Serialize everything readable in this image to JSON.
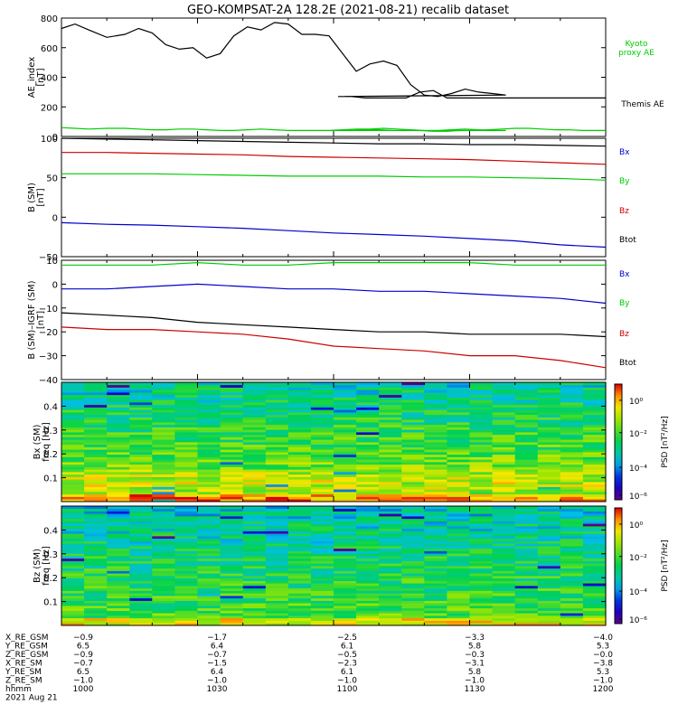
{
  "title": "GEO-KOMPSAT-2A 128.2E (2021-08-21) recalib dataset",
  "chart_data": [
    {
      "type": "line",
      "ylabel": "AE_index\n[nT]",
      "ylim": [
        0,
        800
      ],
      "yticks": [
        0,
        200,
        400,
        600,
        800
      ],
      "x": [
        1000,
        1003,
        1006,
        1010,
        1014,
        1017,
        1020,
        1023,
        1026,
        1029,
        1032,
        1035,
        1038,
        1041,
        1044,
        1047,
        1050,
        1053,
        1056,
        1059,
        1062,
        1065,
        1068,
        1071,
        1074,
        1077,
        1080,
        1083,
        1086,
        1089,
        1092,
        1095,
        1098,
        1101,
        1104,
        1107,
        1110,
        1113,
        1116,
        1119,
        1122,
        1125,
        1128,
        1131,
        1134,
        1137,
        1140,
        1143,
        1146,
        1149,
        1152,
        1155,
        1158,
        1200
      ],
      "series": [
        {
          "name": "Themis AE",
          "color": "#000000",
          "values": [
            730,
            760,
            720,
            670,
            690,
            730,
            700,
            620,
            590,
            600,
            530,
            560,
            680,
            740,
            720,
            770,
            760,
            690,
            690,
            680,
            560,
            440,
            490,
            510,
            480,
            350,
            280,
            270,
            290,
            320,
            300,
            290,
            280,
            270,
            270,
            260,
            260,
            260,
            260,
            300,
            310,
            260,
            260,
            260,
            260,
            260,
            260,
            260,
            260,
            260,
            260,
            260,
            260,
            260
          ]
        },
        {
          "name": "Kyoto proxy AE",
          "color": "#00cc00",
          "values": [
            60,
            55,
            50,
            55,
            55,
            50,
            45,
            45,
            50,
            50,
            45,
            40,
            40,
            45,
            50,
            45,
            40,
            40,
            40,
            40,
            45,
            50,
            50,
            55,
            50,
            45,
            40,
            40,
            45,
            50,
            45,
            40,
            40,
            40,
            40,
            45,
            45,
            40,
            40,
            40,
            35,
            35,
            40,
            40,
            45,
            50,
            55,
            55,
            50,
            45,
            45,
            40,
            40,
            40
          ]
        }
      ]
    },
    {
      "type": "line",
      "ylabel": "B (SM)\n[nT]",
      "ylim": [
        -50,
        100
      ],
      "yticks": [
        -50,
        0,
        50,
        100
      ],
      "x": [
        1000,
        1010,
        1020,
        1030,
        1040,
        1050,
        1100,
        1110,
        1120,
        1130,
        1140,
        1150,
        1200
      ],
      "series": [
        {
          "name": "Bx",
          "color": "#0000cc",
          "values": [
            -7,
            -9,
            -10,
            -12,
            -14,
            -17,
            -20,
            -22,
            -24,
            -27,
            -30,
            -35,
            -38
          ]
        },
        {
          "name": "By",
          "color": "#00cc00",
          "values": [
            55,
            55,
            55,
            54,
            53,
            52,
            52,
            52,
            51,
            51,
            50,
            49,
            47
          ]
        },
        {
          "name": "Bz",
          "color": "#cc0000",
          "values": [
            82,
            82,
            81,
            80,
            79,
            77,
            76,
            75,
            74,
            73,
            71,
            69,
            67
          ]
        },
        {
          "name": "Btot",
          "color": "#000000",
          "values": [
            100,
            99,
            98,
            97,
            96,
            95,
            94,
            93,
            93,
            92,
            92,
            91,
            90
          ]
        }
      ]
    },
    {
      "type": "line",
      "ylabel": "B (SM)–IGRF (SM)\n[nT]",
      "ylim": [
        -40,
        10
      ],
      "yticks": [
        -40,
        -30,
        -20,
        -10,
        0,
        10
      ],
      "x": [
        1000,
        1010,
        1020,
        1030,
        1040,
        1050,
        1100,
        1110,
        1120,
        1130,
        1140,
        1150,
        1200
      ],
      "series": [
        {
          "name": "Bx",
          "color": "#0000cc",
          "values": [
            -2,
            -2,
            -1,
            0,
            -1,
            -2,
            -2,
            -3,
            -3,
            -4,
            -5,
            -6,
            -8
          ]
        },
        {
          "name": "By",
          "color": "#00cc00",
          "values": [
            8,
            8,
            8,
            9,
            8,
            8,
            9,
            9,
            9,
            9,
            8,
            8,
            8
          ]
        },
        {
          "name": "Bz",
          "color": "#cc0000",
          "values": [
            -18,
            -19,
            -19,
            -20,
            -21,
            -23,
            -26,
            -27,
            -28,
            -30,
            -30,
            -32,
            -35
          ]
        },
        {
          "name": "Btot",
          "color": "#000000",
          "values": [
            -12,
            -13,
            -14,
            -16,
            -17,
            -18,
            -19,
            -20,
            -20,
            -21,
            -21,
            -21,
            -22
          ]
        }
      ]
    },
    {
      "type": "heatmap",
      "ylabel": "Bx (SM)\nfreq [Hz]",
      "ylim": [
        0,
        0.5
      ],
      "yticks": [
        0.1,
        0.2,
        0.3,
        0.4
      ],
      "colorbar_label": "PSD [nT²/Hz]",
      "colorbar_ticks": [
        "10⁰",
        "10⁻²",
        "10⁻⁴",
        "10⁻⁶"
      ]
    },
    {
      "type": "heatmap",
      "ylabel": "Bz (SM)\nfreq [Hz]",
      "ylim": [
        0,
        0.5
      ],
      "yticks": [
        0.1,
        0.2,
        0.3,
        0.4
      ],
      "colorbar_label": "PSD [nT²/Hz]",
      "colorbar_ticks": [
        "10⁰",
        "10⁻²",
        "10⁻⁴",
        "10⁻⁶"
      ]
    }
  ],
  "side_labels": {
    "panel1": [
      {
        "text": "Kyoto\nproxy AE",
        "color": "#00cc00"
      },
      {
        "text": "Themis AE",
        "color": "#000000"
      }
    ],
    "panel2": [
      {
        "text": "Bx",
        "color": "#0000cc"
      },
      {
        "text": "By",
        "color": "#00cc00"
      },
      {
        "text": "Bz",
        "color": "#cc0000"
      },
      {
        "text": "Btot",
        "color": "#000000"
      }
    ],
    "panel3": [
      {
        "text": "Bx",
        "color": "#0000cc"
      },
      {
        "text": "By",
        "color": "#00cc00"
      },
      {
        "text": "Bz",
        "color": "#cc0000"
      },
      {
        "text": "Btot",
        "color": "#000000"
      }
    ]
  },
  "ephemeris": {
    "rows": [
      {
        "label": "X_RE_GSM",
        "values": [
          "-0.9",
          "-1.7",
          "-2.5",
          "-3.3",
          "-4.0"
        ]
      },
      {
        "label": "Y_RE_GSM",
        "values": [
          "6.5",
          "6.4",
          "6.1",
          "5.8",
          "5.3"
        ]
      },
      {
        "label": "Z_RE_GSM",
        "values": [
          "-0.9",
          "-0.7",
          "-0.5",
          "-0.3",
          "-0.0"
        ]
      },
      {
        "label": "X_RE_SM",
        "values": [
          "-0.7",
          "-1.5",
          "-2.3",
          "-3.1",
          "-3.8"
        ]
      },
      {
        "label": "Y_RE_SM",
        "values": [
          "6.5",
          "6.4",
          "6.1",
          "5.8",
          "5.3"
        ]
      },
      {
        "label": "Z_RE_SM",
        "values": [
          "-1.0",
          "-1.0",
          "-1.0",
          "-1.0",
          "-1.0"
        ]
      },
      {
        "label": "hhmm",
        "values": [
          "1000",
          "1030",
          "1100",
          "1130",
          "1200"
        ]
      }
    ],
    "date": "2021 Aug 21"
  }
}
